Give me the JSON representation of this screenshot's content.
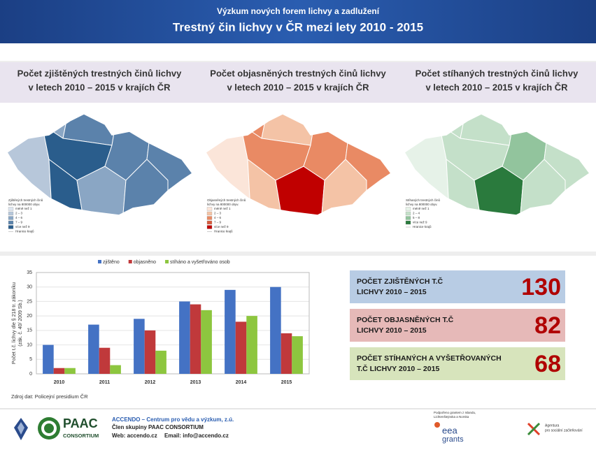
{
  "header": {
    "subtitle": "Výzkum nových forem lichvy a zadlužení",
    "title": "Trestný čin lichvy v ČR mezi lety 2010 - 2015"
  },
  "maps": [
    {
      "title_lines": [
        "Počet zjištěných trestných činů lichvy",
        "v letech 2010 – 2015 v krajích ČR"
      ],
      "legend_title": [
        "Zjištěných trestných činů",
        "lichvy na 800000 obyv."
      ],
      "legend": [
        {
          "label": "méně než 1",
          "color": "#dde5ef"
        },
        {
          "label": "2 – 3",
          "color": "#b7c7da"
        },
        {
          "label": "4 – 6",
          "color": "#8aa6c4"
        },
        {
          "label": "7 – 9",
          "color": "#5b82ab"
        },
        {
          "label": "více než 9",
          "color": "#2a5d8c"
        }
      ],
      "border_label": "Hranice krajů"
    },
    {
      "title_lines": [
        "Počet objasněných trestných činů lichvy",
        "v letech 2010 – 2015 v krajích ČR"
      ],
      "legend_title": [
        "Objasněných trestných činů",
        "lichvy na 800000 obyv."
      ],
      "legend": [
        {
          "label": "méně než 1",
          "color": "#fbe5d9"
        },
        {
          "label": "2 – 3",
          "color": "#f4c3a6"
        },
        {
          "label": "4 – 6",
          "color": "#e98a64"
        },
        {
          "label": "7 – 9",
          "color": "#d65a3c"
        },
        {
          "label": "více než 9",
          "color": "#c00000"
        }
      ],
      "border_label": "Hranice krajů"
    },
    {
      "title_lines": [
        "Počet stíhaných trestných činů lichvy",
        "v letech 2010 – 2015 v krajích ČR"
      ],
      "legend_title": [
        "Stíhaných trestných činů",
        "lichvy na 800000 obyv."
      ],
      "legend": [
        {
          "label": "méně než 1",
          "color": "#e6f2e8"
        },
        {
          "label": "2 – 4",
          "color": "#c4e0c9"
        },
        {
          "label": "5 – 8",
          "color": "#92c49d"
        },
        {
          "label": "více než 9",
          "color": "#2a7a3d"
        }
      ],
      "border_label": "Hranice krajů"
    }
  ],
  "chart_data": {
    "type": "bar",
    "categories": [
      "2010",
      "2011",
      "2012",
      "2013",
      "2014",
      "2015"
    ],
    "series": [
      {
        "name": "zjištěno",
        "color": "#4472c4",
        "values": [
          10,
          17,
          19,
          25,
          29,
          30
        ]
      },
      {
        "name": "objasněno",
        "color": "#c0393b",
        "values": [
          2,
          9,
          15,
          24,
          18,
          14
        ]
      },
      {
        "name": "stíháno a vyšetřováno osob",
        "color": "#8dc63f",
        "values": [
          2,
          3,
          8,
          22,
          20,
          13
        ]
      }
    ],
    "ylim": [
      0,
      35
    ],
    "yticks": [
      0,
      5,
      10,
      15,
      20,
      25,
      30,
      35
    ],
    "grid": true,
    "ylabel": [
      "Počet t.č. lichvy dle § 218 tr. zákoníku",
      "(zák. č. 40/ 2009 Sb.)"
    ],
    "source": "Zdroj dat: Policejní presidium ČR"
  },
  "stats": [
    {
      "label_lines": [
        "POČET ZJIŠTĚNÝCH T.Č",
        "LICHVY 2010 – 2015"
      ],
      "value": "130",
      "color": "#b8cce4"
    },
    {
      "label_lines": [
        "POČET OBJASNĚNÝCH T.Č",
        "LICHVY 2010 – 2015"
      ],
      "value": "82",
      "color": "#e6b9b8"
    },
    {
      "label_lines": [
        "POČET STÍHANÝCH A VYŠETŘOVANÝCH",
        "T.Č LICHVY 2010 – 2015"
      ],
      "value": "68",
      "color": "#d7e4bc"
    }
  ],
  "footer": {
    "paac": "PAAC",
    "consortium": "CONSORTIUM",
    "org": "ACCENDO – Centrum pro vědu a výzkum, z.ú.",
    "member": "Člen skupiny PAAC CONSORTIUM",
    "web": "Web: accendo.cz",
    "email": "Email: info@accendo.cz",
    "grant": [
      "Podpořeno grantem z Islandu,",
      "Lichtenštejnska a Norska"
    ],
    "eea": "eea",
    "grants": "grants",
    "agency": [
      "Agentura",
      "pro sociální začleňování"
    ]
  }
}
